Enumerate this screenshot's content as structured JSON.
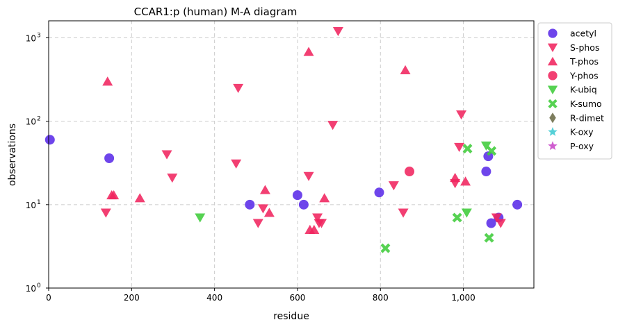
{
  "chart_data": {
    "type": "scatter",
    "title": "CCAR1:p (human) M-A diagram",
    "xlabel": "residue",
    "ylabel": "observations",
    "xlim": [
      0,
      1170
    ],
    "ylim": [
      1,
      1600
    ],
    "yscale": "log",
    "grid": true,
    "legend_position": "outside-top-right",
    "x_ticks": [
      0,
      200,
      400,
      600,
      800,
      1000
    ],
    "x_tick_labels": [
      "0",
      "200",
      "400",
      "600",
      "800",
      "1,000"
    ],
    "y_ticks": [
      1,
      10,
      100,
      1000
    ],
    "y_tick_labels": [
      "10",
      "10",
      "10",
      "10"
    ],
    "y_tick_exponents": [
      "0",
      "1",
      "2",
      "3"
    ],
    "series": [
      {
        "name": "acetyl",
        "marker": "circle",
        "color": "#5a2be8",
        "points": [
          [
            3,
            60
          ],
          [
            146,
            36
          ],
          [
            485,
            10
          ],
          [
            600,
            13
          ],
          [
            615,
            10
          ],
          [
            797,
            14
          ],
          [
            1055,
            25
          ],
          [
            1060,
            38
          ],
          [
            1067,
            6
          ],
          [
            1085,
            7
          ],
          [
            1130,
            10
          ]
        ]
      },
      {
        "name": "S-phos",
        "marker": "triangle-down",
        "color": "#f0245e",
        "points": [
          [
            138,
            8
          ],
          [
            285,
            40
          ],
          [
            298,
            21
          ],
          [
            452,
            31
          ],
          [
            457,
            250
          ],
          [
            505,
            6
          ],
          [
            517,
            9
          ],
          [
            627,
            22
          ],
          [
            648,
            7
          ],
          [
            652,
            6
          ],
          [
            658,
            6
          ],
          [
            685,
            90
          ],
          [
            698,
            1200
          ],
          [
            832,
            17
          ],
          [
            855,
            8
          ],
          [
            980,
            18
          ],
          [
            990,
            49
          ],
          [
            995,
            120
          ],
          [
            1080,
            7
          ],
          [
            1090,
            6
          ]
        ]
      },
      {
        "name": "T-phos",
        "marker": "triangle-up",
        "color": "#f0245e",
        "points": [
          [
            142,
            300
          ],
          [
            152,
            13
          ],
          [
            157,
            13
          ],
          [
            220,
            12
          ],
          [
            522,
            15
          ],
          [
            532,
            8
          ],
          [
            627,
            680
          ],
          [
            630,
            5
          ],
          [
            640,
            5
          ],
          [
            665,
            12
          ],
          [
            860,
            410
          ],
          [
            980,
            21
          ],
          [
            1005,
            19
          ]
        ]
      },
      {
        "name": "Y-phos",
        "marker": "circle",
        "color": "#f0245e",
        "points": [
          [
            870,
            25
          ]
        ]
      },
      {
        "name": "K-ubiq",
        "marker": "triangle-down",
        "color": "#3fcc3a",
        "points": [
          [
            365,
            7
          ],
          [
            1008,
            8
          ],
          [
            1055,
            51
          ]
        ]
      },
      {
        "name": "K-sumo",
        "marker": "x",
        "color": "#3fcc3a",
        "points": [
          [
            812,
            3
          ],
          [
            985,
            7
          ],
          [
            1010,
            47
          ],
          [
            1062,
            4
          ],
          [
            1068,
            44
          ]
        ]
      },
      {
        "name": "R-dimet",
        "marker": "diamond",
        "color": "#6b6b47",
        "points": []
      },
      {
        "name": "K-oxy",
        "marker": "star",
        "color": "#3ec9d1",
        "points": []
      },
      {
        "name": "P-oxy",
        "marker": "star",
        "color": "#c847c8",
        "points": []
      }
    ]
  }
}
